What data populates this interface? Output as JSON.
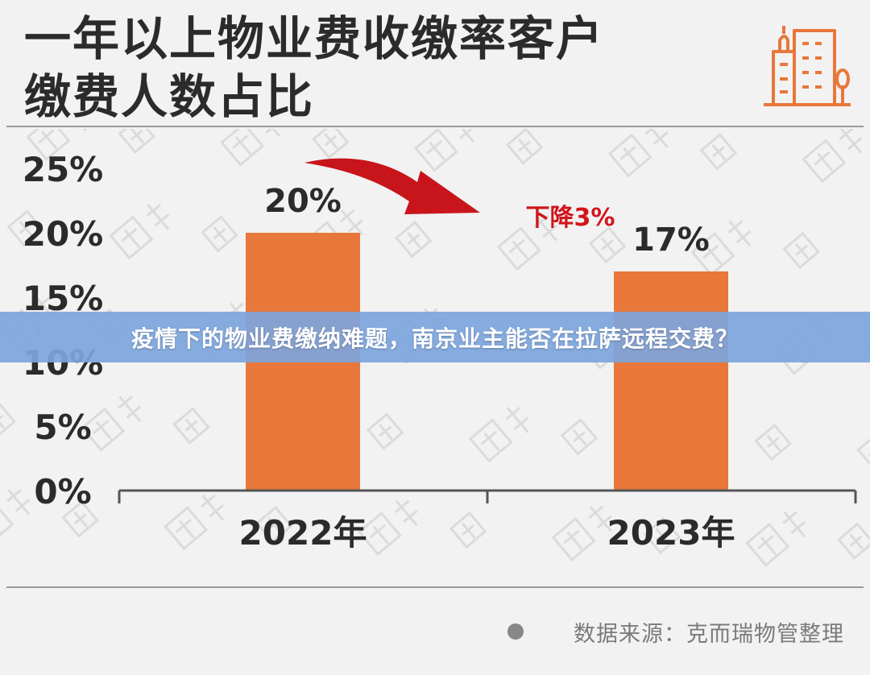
{
  "title": {
    "line1": "一年以上物业费收缴率客户",
    "line2": "缴费人数占比"
  },
  "banner": {
    "text": "疫情下的物业费缴纳难题，南京业主能否在拉萨远程交费？"
  },
  "footer": {
    "source": "数据来源：克而瑞物管整理"
  },
  "colors": {
    "bar": "#e8773a",
    "arrow": "#c8151b",
    "text": "#2b2b2b",
    "axis": "#555555",
    "banner": "#7da5dc"
  },
  "icons": {
    "logo": "building-icon"
  },
  "chart_data": {
    "type": "bar",
    "categories": [
      "2022年",
      "2023年"
    ],
    "values": [
      20,
      17
    ],
    "value_labels": [
      "20%",
      "17%"
    ],
    "y_ticks": [
      "0%",
      "5%",
      "10%",
      "15%",
      "20%",
      "25%"
    ],
    "ylim": [
      0,
      25
    ],
    "annotation": "下降3%",
    "grid": false,
    "legend": "none"
  }
}
